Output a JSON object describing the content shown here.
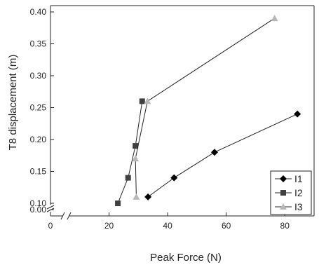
{
  "chart_data": {
    "type": "line",
    "title": "",
    "xlabel": "Peak Force (N)",
    "ylabel": "T8 displacement (m)",
    "xlim": [
      0,
      90
    ],
    "ylim": [
      0.0,
      0.4
    ],
    "axis_break": {
      "x": [
        5,
        18
      ],
      "y": [
        0.01,
        0.085
      ]
    },
    "xticks": [
      0,
      20,
      40,
      60,
      80
    ],
    "xtick_labels": [
      "0",
      "20",
      "40",
      "60",
      "80"
    ],
    "yticks": [
      0.0,
      0.1,
      0.15,
      0.2,
      0.25,
      0.3,
      0.35,
      0.4
    ],
    "ytick_labels": [
      "0.00",
      "0.10",
      "0.15",
      "0.20",
      "0.25",
      "0.30",
      "0.35",
      "0.40"
    ],
    "grid": false,
    "legend_position": "bottom-right",
    "series": [
      {
        "name": "I1",
        "marker": "diamond",
        "color": "#000000",
        "points": [
          {
            "x": 33.3,
            "y": 0.11
          },
          {
            "x": 42.2,
            "y": 0.14
          },
          {
            "x": 56.0,
            "y": 0.18
          },
          {
            "x": 84.3,
            "y": 0.24
          }
        ]
      },
      {
        "name": "I2",
        "marker": "square",
        "color": "#404040",
        "points": [
          {
            "x": 23.0,
            "y": 0.1
          },
          {
            "x": 26.5,
            "y": 0.14
          },
          {
            "x": 29.0,
            "y": 0.19
          },
          {
            "x": 31.3,
            "y": 0.26
          }
        ]
      },
      {
        "name": "I3",
        "marker": "triangle",
        "color": "#b8b8b8",
        "points": [
          {
            "x": 29.3,
            "y": 0.11
          },
          {
            "x": 29.0,
            "y": 0.17
          },
          {
            "x": 33.1,
            "y": 0.26
          },
          {
            "x": 76.5,
            "y": 0.39
          }
        ]
      }
    ]
  }
}
